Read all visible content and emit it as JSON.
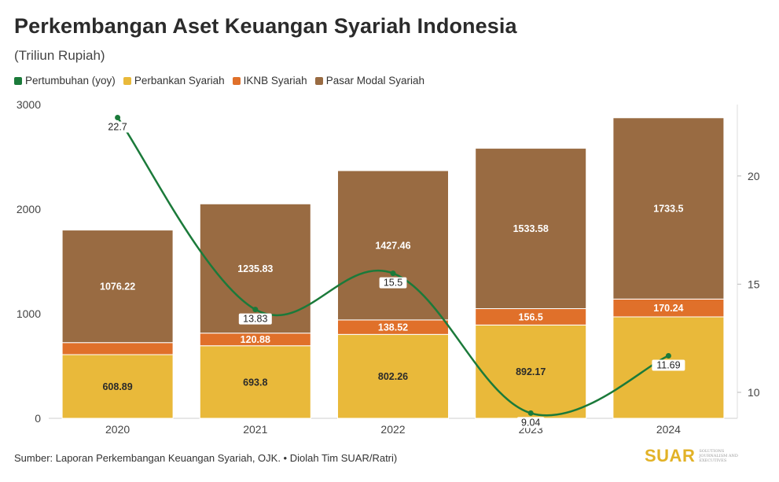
{
  "header": {
    "title": "Perkembangan Aset Keuangan Syariah Indonesia",
    "subtitle": "(Triliun Rupiah)"
  },
  "legend": [
    {
      "label": "Pertumbuhan (yoy)",
      "color": "#1b7a3a"
    },
    {
      "label": "Perbankan Syariah",
      "color": "#e9b93a"
    },
    {
      "label": "IKNB Syariah",
      "color": "#e0702a"
    },
    {
      "label": "Pasar Modal Syariah",
      "color": "#996b42"
    }
  ],
  "chart_data": {
    "type": "bar",
    "stacked": true,
    "categories": [
      "2020",
      "2021",
      "2022",
      "2023",
      "2024"
    ],
    "series": [
      {
        "name": "Perbankan Syariah",
        "values": [
          608.89,
          693.8,
          802.26,
          892.17,
          970.0
        ],
        "labels": [
          "608.89",
          "693.8",
          "802.26",
          "892.17",
          ""
        ],
        "color": "#e9b93a"
      },
      {
        "name": "IKNB Syariah",
        "values": [
          115,
          120.88,
          138.52,
          156.5,
          170.24
        ],
        "labels": [
          "",
          "120.88",
          "138.52",
          "156.5",
          "170.24"
        ],
        "color": "#e0702a"
      },
      {
        "name": "Pasar Modal Syariah",
        "values": [
          1076.22,
          1235.83,
          1427.46,
          1533.58,
          1733.5
        ],
        "labels": [
          "1076.22",
          "1235.83",
          "1427.46",
          "1533.58",
          "1733.5"
        ],
        "color": "#996b42"
      }
    ],
    "line_series": {
      "name": "Pertumbuhan (yoy)",
      "values": [
        22.7,
        13.83,
        15.5,
        9.04,
        11.69
      ],
      "labels": [
        "22.7",
        "13.83",
        "15.5",
        "9.04",
        "11.69"
      ],
      "color": "#1b7a3a",
      "axis": "right"
    },
    "y_left": {
      "ylim": [
        0,
        3000
      ],
      "ticks": [
        "0",
        "1000",
        "2000",
        "3000"
      ]
    },
    "y_right": {
      "ylim": [
        8.8,
        23.3
      ],
      "ticks": [
        "10",
        "15",
        "20"
      ]
    },
    "grid": false,
    "legend_position": "top-left"
  },
  "footer": {
    "source": "Sumber: Laporan Perkembangan Keuangan Syariah, OJK. • Diolah Tim SUAR/Ratri)",
    "logo": "SUAR",
    "logo_tagline": "SOLUTIONS JOURNALISM AND EXECUTIVES"
  }
}
